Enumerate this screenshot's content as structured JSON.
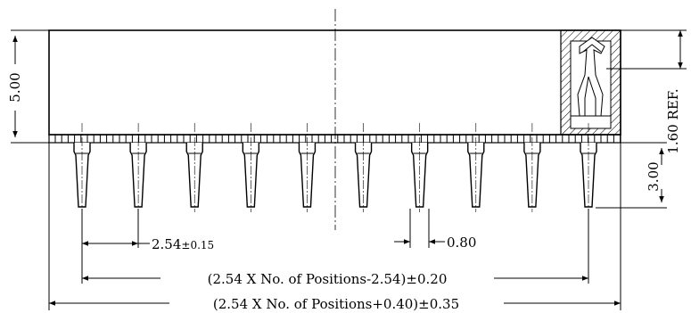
{
  "labels": {
    "height": "5.00",
    "ref": "1.60 REF.",
    "pin_length": "3.00",
    "pitch_value": "2.54",
    "pitch_tol": "±0.15",
    "pin_width": "0.80",
    "span_pins": "(2.54 X No. of Positions-2.54)±0.20",
    "span_total": "(2.54 X No. of Positions+0.40)±0.35"
  },
  "drawing": {
    "pin_count": 10,
    "line_color": "#000000",
    "hatch_color": "#000000"
  }
}
